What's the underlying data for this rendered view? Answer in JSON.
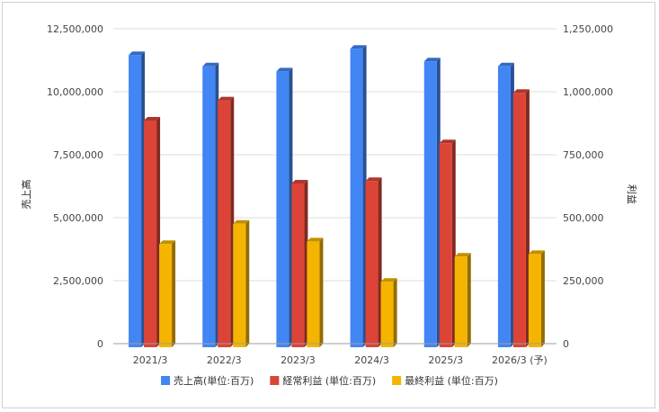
{
  "chart_data": {
    "type": "bar",
    "subtype": "3d-clustered-dual-axis",
    "categories": [
      "2021/3",
      "2022/3",
      "2023/3",
      "2024/3",
      "2025/3",
      "2026/3 (予)"
    ],
    "ylabel_left": "売上高",
    "ylabel_right": "利益",
    "ylim_left": [
      0,
      12500000
    ],
    "ylim_right": [
      0,
      1250000
    ],
    "yticks_left": [
      "0",
      "2,500,000",
      "5,000,000",
      "7,500,000",
      "10,000,000",
      "12,500,000"
    ],
    "yticks_right": [
      "0",
      "250,000",
      "500,000",
      "750,000",
      "1,000,000",
      "1,250,000"
    ],
    "grid": true,
    "legend_position": "bottom",
    "series": [
      {
        "name": "売上高(単位:百万)",
        "axis": "left",
        "color": "#4285f4",
        "values": [
          11600000,
          11150000,
          10950000,
          11850000,
          11350000,
          11150000
        ]
      },
      {
        "name": "経常利益 (単位:百万)",
        "axis": "right",
        "color": "#db4437",
        "values": [
          900000,
          980000,
          650000,
          660000,
          810000,
          1010000
        ]
      },
      {
        "name": "最終利益 (単位:百万)",
        "axis": "right",
        "color": "#f4b400",
        "values": [
          410000,
          490000,
          420000,
          260000,
          360000,
          370000
        ]
      }
    ]
  }
}
